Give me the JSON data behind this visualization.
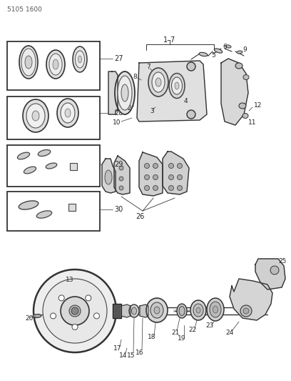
{
  "title": "5105 1600",
  "bg_color": "#ffffff",
  "line_color": "#000000",
  "fig_width": 4.08,
  "fig_height": 5.33,
  "dpi": 100
}
